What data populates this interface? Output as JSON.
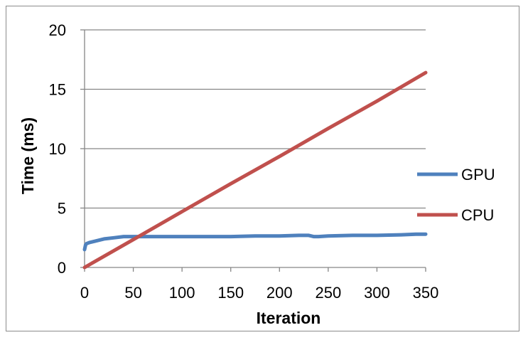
{
  "chart_data": {
    "type": "line",
    "title": "",
    "xlabel": "Iteration",
    "ylabel": "Time (ms)",
    "xlim": [
      0,
      350
    ],
    "ylim": [
      0,
      20
    ],
    "x_ticks": [
      0,
      50,
      100,
      150,
      200,
      250,
      300,
      350
    ],
    "y_ticks": [
      0,
      5,
      10,
      15,
      20
    ],
    "grid": "horizontal",
    "legend_position": "right",
    "series": [
      {
        "name": "GPU",
        "color": "#4f81bd",
        "x": [
          0,
          1,
          2,
          5,
          10,
          20,
          30,
          40,
          50,
          75,
          100,
          125,
          150,
          175,
          200,
          220,
          230,
          235,
          240,
          250,
          275,
          300,
          325,
          340,
          350
        ],
        "y": [
          1.5,
          1.9,
          2.0,
          2.1,
          2.2,
          2.4,
          2.5,
          2.6,
          2.6,
          2.6,
          2.6,
          2.6,
          2.6,
          2.65,
          2.65,
          2.7,
          2.7,
          2.6,
          2.6,
          2.65,
          2.7,
          2.7,
          2.75,
          2.8,
          2.8
        ]
      },
      {
        "name": "CPU",
        "color": "#c0504d",
        "x": [
          0,
          50,
          100,
          150,
          200,
          250,
          300,
          350
        ],
        "y": [
          0,
          2.35,
          4.7,
          7.05,
          9.35,
          11.7,
          14.0,
          16.4
        ]
      }
    ]
  }
}
